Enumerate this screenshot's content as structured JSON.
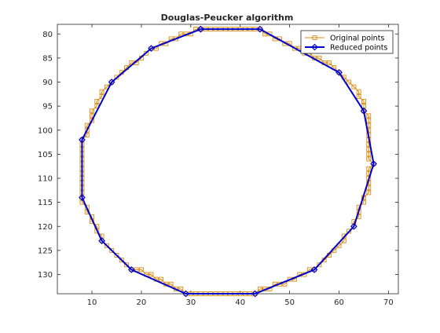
{
  "chart_data": {
    "type": "line",
    "title": "Douglas-Peucker algorithm",
    "xlabel": "",
    "ylabel": "",
    "xlim": [
      3,
      72
    ],
    "ylim": [
      134,
      78
    ],
    "y_axis_reversed": true,
    "grid": false,
    "legend_position": "top-right",
    "xticks": [
      10,
      20,
      30,
      40,
      50,
      60,
      70
    ],
    "yticks": [
      80,
      85,
      90,
      95,
      100,
      105,
      110,
      115,
      120,
      125,
      130
    ],
    "series": [
      {
        "name": "Original points",
        "color": "#d98b10",
        "marker": "square",
        "points": [
          [
            32,
            79
          ],
          [
            33,
            79
          ],
          [
            34,
            79
          ],
          [
            35,
            79
          ],
          [
            36,
            79
          ],
          [
            37,
            79
          ],
          [
            38,
            79
          ],
          [
            39,
            79
          ],
          [
            40,
            79
          ],
          [
            41,
            79
          ],
          [
            42,
            79
          ],
          [
            43,
            79
          ],
          [
            44,
            79
          ],
          [
            45,
            80
          ],
          [
            46,
            80
          ],
          [
            47,
            81
          ],
          [
            48,
            81
          ],
          [
            49,
            82
          ],
          [
            50,
            82
          ],
          [
            51,
            83
          ],
          [
            52,
            83
          ],
          [
            53,
            84
          ],
          [
            54,
            84
          ],
          [
            55,
            85
          ],
          [
            56,
            85
          ],
          [
            57,
            86
          ],
          [
            58,
            86
          ],
          [
            59,
            87
          ],
          [
            60,
            88
          ],
          [
            61,
            89
          ],
          [
            62,
            90
          ],
          [
            63,
            91
          ],
          [
            64,
            92
          ],
          [
            64,
            93
          ],
          [
            65,
            94
          ],
          [
            65,
            95
          ],
          [
            65,
            96
          ],
          [
            66,
            97
          ],
          [
            66,
            98
          ],
          [
            66,
            99
          ],
          [
            66,
            100
          ],
          [
            66,
            101
          ],
          [
            66,
            102
          ],
          [
            66,
            103
          ],
          [
            66,
            104
          ],
          [
            66,
            105
          ],
          [
            66,
            106
          ],
          [
            67,
            107
          ],
          [
            66,
            108
          ],
          [
            66,
            109
          ],
          [
            66,
            110
          ],
          [
            66,
            111
          ],
          [
            66,
            112
          ],
          [
            66,
            113
          ],
          [
            65,
            114
          ],
          [
            65,
            115
          ],
          [
            64,
            116
          ],
          [
            64,
            117
          ],
          [
            64,
            118
          ],
          [
            63,
            119
          ],
          [
            63,
            120
          ],
          [
            62,
            121
          ],
          [
            61,
            122
          ],
          [
            61,
            123
          ],
          [
            60,
            124
          ],
          [
            59,
            125
          ],
          [
            58,
            126
          ],
          [
            57,
            127
          ],
          [
            56,
            128
          ],
          [
            55,
            129
          ],
          [
            54,
            129
          ],
          [
            53,
            130
          ],
          [
            52,
            130
          ],
          [
            51,
            131
          ],
          [
            50,
            131
          ],
          [
            49,
            132
          ],
          [
            48,
            132
          ],
          [
            47,
            132
          ],
          [
            46,
            133
          ],
          [
            45,
            133
          ],
          [
            44,
            133
          ],
          [
            43,
            134
          ],
          [
            42,
            134
          ],
          [
            41,
            134
          ],
          [
            40,
            134
          ],
          [
            39,
            134
          ],
          [
            38,
            134
          ],
          [
            37,
            134
          ],
          [
            36,
            134
          ],
          [
            35,
            134
          ],
          [
            34,
            134
          ],
          [
            33,
            134
          ],
          [
            32,
            134
          ],
          [
            31,
            134
          ],
          [
            30,
            134
          ],
          [
            29,
            134
          ],
          [
            28,
            133
          ],
          [
            27,
            133
          ],
          [
            26,
            132
          ],
          [
            25,
            132
          ],
          [
            24,
            131
          ],
          [
            23,
            131
          ],
          [
            22,
            130
          ],
          [
            21,
            130
          ],
          [
            20,
            129
          ],
          [
            19,
            129
          ],
          [
            18,
            129
          ],
          [
            17,
            128
          ],
          [
            16,
            127
          ],
          [
            15,
            126
          ],
          [
            14,
            125
          ],
          [
            13,
            124
          ],
          [
            12,
            123
          ],
          [
            12,
            122
          ],
          [
            11,
            121
          ],
          [
            11,
            120
          ],
          [
            10,
            119
          ],
          [
            10,
            118
          ],
          [
            9,
            117
          ],
          [
            9,
            116
          ],
          [
            8,
            115
          ],
          [
            8,
            114
          ],
          [
            8,
            113
          ],
          [
            8,
            112
          ],
          [
            8,
            111
          ],
          [
            8,
            110
          ],
          [
            8,
            109
          ],
          [
            8,
            108
          ],
          [
            8,
            107
          ],
          [
            8,
            106
          ],
          [
            8,
            105
          ],
          [
            8,
            104
          ],
          [
            8,
            103
          ],
          [
            8,
            102
          ],
          [
            9,
            101
          ],
          [
            9,
            100
          ],
          [
            9,
            99
          ],
          [
            10,
            98
          ],
          [
            10,
            97
          ],
          [
            10,
            96
          ],
          [
            11,
            95
          ],
          [
            11,
            94
          ],
          [
            12,
            93
          ],
          [
            12,
            92
          ],
          [
            13,
            91
          ],
          [
            14,
            90
          ],
          [
            15,
            89
          ],
          [
            16,
            88
          ],
          [
            17,
            87
          ],
          [
            18,
            86
          ],
          [
            19,
            86
          ],
          [
            20,
            85
          ],
          [
            21,
            84
          ],
          [
            22,
            83
          ],
          [
            23,
            83
          ],
          [
            24,
            82
          ],
          [
            25,
            82
          ],
          [
            26,
            81
          ],
          [
            27,
            81
          ],
          [
            28,
            80
          ],
          [
            29,
            80
          ],
          [
            30,
            80
          ],
          [
            31,
            79
          ],
          [
            32,
            79
          ]
        ]
      },
      {
        "name": "Reduced points",
        "color": "#0000cc",
        "marker": "diamond",
        "points": [
          [
            32,
            79
          ],
          [
            44,
            79
          ],
          [
            60,
            88
          ],
          [
            65,
            96
          ],
          [
            67,
            107
          ],
          [
            63,
            120
          ],
          [
            55,
            129
          ],
          [
            43,
            134
          ],
          [
            29,
            134
          ],
          [
            18,
            129
          ],
          [
            12,
            123
          ],
          [
            8,
            114
          ],
          [
            8,
            102
          ],
          [
            14,
            90
          ],
          [
            22,
            83
          ],
          [
            32,
            79
          ]
        ]
      }
    ]
  }
}
